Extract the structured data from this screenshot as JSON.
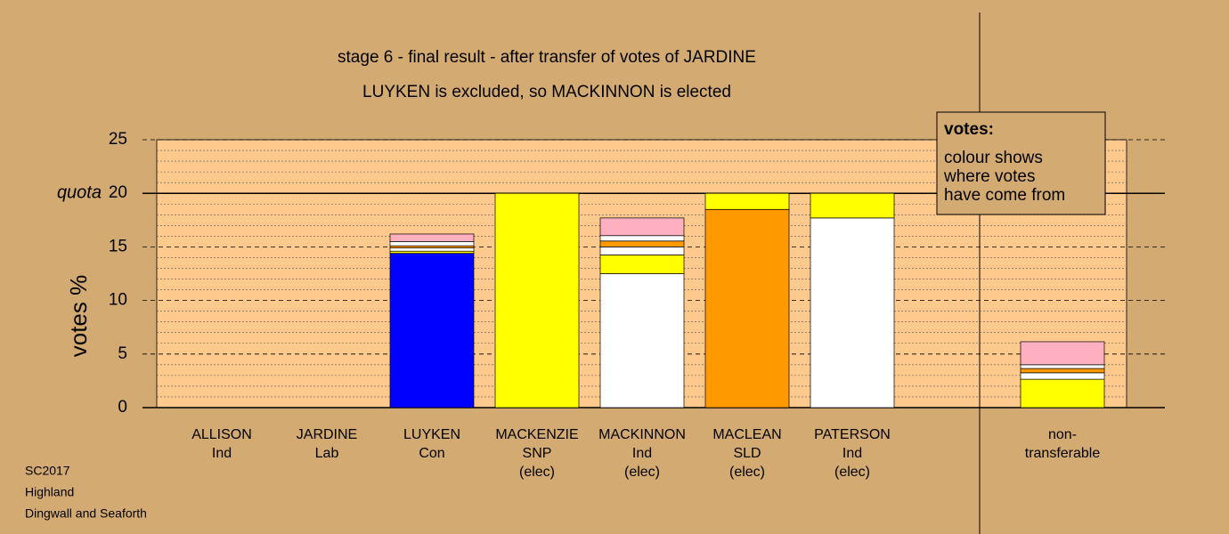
{
  "chart_data": {
    "type": "stacked-bar",
    "title": "stage 6 - final result - after transfer of votes of JARDINE",
    "subtitle": "LUYKEN is excluded, so MACKINNON is elected",
    "y_label": "votes %",
    "quota": {
      "value": 20,
      "label": "quota"
    },
    "categories": [
      [
        "ALLISON",
        "Ind"
      ],
      [
        "JARDINE",
        "Lab"
      ],
      [
        "LUYKEN",
        "Con"
      ],
      [
        "MACKENZIE",
        "SNP",
        "(elec)"
      ],
      [
        "MACKINNON",
        "Ind",
        "(elec)"
      ],
      [
        "MACLEAN",
        "SLD",
        "(elec)"
      ],
      [
        "PATERSON",
        "Ind",
        "(elec)"
      ],
      null,
      [
        "non-",
        "transferable"
      ]
    ],
    "segments": [
      [],
      [],
      [
        {
          "color": "#0000ff",
          "value": 14.4
        },
        {
          "color": "#ffff00",
          "value": 0.2
        },
        {
          "color": "#ffffff",
          "value": 0.3
        },
        {
          "color": "#ff9900",
          "value": 0.2
        },
        {
          "color": "#ffffff",
          "value": 0.4
        },
        {
          "color": "#ffb0c0",
          "value": 0.7
        }
      ],
      [
        {
          "color": "#ffff00",
          "value": 20
        }
      ],
      [
        {
          "color": "#ffffff",
          "value": 12.5
        },
        {
          "color": "#ffff00",
          "value": 1.75
        },
        {
          "color": "#ffffff",
          "value": 0.75
        },
        {
          "color": "#ff9900",
          "value": 0.55
        },
        {
          "color": "#ffffff",
          "value": 0.5
        },
        {
          "color": "#ffb0c0",
          "value": 1.65
        }
      ],
      [
        {
          "color": "#ff9900",
          "value": 18.5
        },
        {
          "color": "#ffff00",
          "value": 1.5
        }
      ],
      [
        {
          "color": "#ffffff",
          "value": 17.7
        },
        {
          "color": "#ffff00",
          "value": 2.3
        }
      ],
      [],
      [
        {
          "color": "#ffff00",
          "value": 2.65
        },
        {
          "color": "#ffffff",
          "value": 0.6
        },
        {
          "color": "#ff9900",
          "value": 0.4
        },
        {
          "color": "#ffffff",
          "value": 0.35
        },
        {
          "color": "#ffb0c0",
          "value": 2.15
        }
      ]
    ],
    "ylim": [
      0,
      25
    ],
    "yticks": [
      0,
      5,
      10,
      15,
      20,
      25
    ],
    "minor_yticks": [
      1,
      2,
      3,
      4,
      6,
      7,
      8,
      9,
      11,
      12,
      13,
      14,
      16,
      17,
      18,
      19,
      21,
      22,
      23,
      24
    ],
    "legend": {
      "title": "votes:",
      "lines": [
        "colour shows",
        "where votes",
        "have come from"
      ]
    },
    "footer": [
      "SC2017",
      "Highland",
      "Dingwall and Seaforth"
    ]
  }
}
